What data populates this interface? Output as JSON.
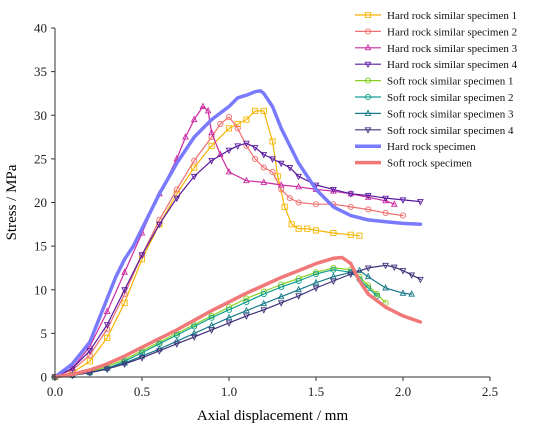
{
  "chart_data": {
    "type": "line",
    "title": "",
    "xlabel": "Axial displacement / mm",
    "ylabel": "Stress / MPa",
    "xlim": [
      0,
      2.5
    ],
    "ylim": [
      0,
      40
    ],
    "xticks": [
      "0.0",
      "0.5",
      "1.0",
      "1.5",
      "2.0",
      "2.5"
    ],
    "yticks": [
      "0",
      "5",
      "10",
      "15",
      "20",
      "25",
      "30",
      "35",
      "40"
    ],
    "grid": false,
    "legend_position": "top-right",
    "series": [
      {
        "name": "Hard rock similar specimen 1",
        "color": "#f5b400",
        "marker": "square",
        "width": 1.2,
        "x": [
          0.0,
          0.1,
          0.2,
          0.3,
          0.4,
          0.5,
          0.6,
          0.7,
          0.8,
          0.9,
          1.0,
          1.05,
          1.1,
          1.15,
          1.2,
          1.25,
          1.28,
          1.32,
          1.36,
          1.4,
          1.45,
          1.5,
          1.6,
          1.7,
          1.75
        ],
        "y": [
          0.0,
          0.5,
          1.8,
          4.5,
          8.5,
          13.5,
          17.5,
          21.0,
          24.0,
          26.5,
          28.5,
          29.0,
          29.5,
          30.5,
          30.5,
          27.0,
          23.0,
          19.5,
          17.5,
          17.0,
          17.0,
          16.8,
          16.5,
          16.3,
          16.2
        ]
      },
      {
        "name": "Hard rock similar specimen 2",
        "color": "#f07070",
        "marker": "circle",
        "width": 1.2,
        "x": [
          0.0,
          0.1,
          0.2,
          0.3,
          0.4,
          0.5,
          0.6,
          0.7,
          0.8,
          0.9,
          0.95,
          1.0,
          1.05,
          1.1,
          1.15,
          1.2,
          1.25,
          1.3,
          1.35,
          1.4,
          1.5,
          1.6,
          1.7,
          1.8,
          1.9,
          2.0
        ],
        "y": [
          0.0,
          0.8,
          2.5,
          5.5,
          9.5,
          14.0,
          18.0,
          21.5,
          24.8,
          27.5,
          29.0,
          29.8,
          28.5,
          26.5,
          25.0,
          24.0,
          23.5,
          21.5,
          20.5,
          20.0,
          19.8,
          19.8,
          19.5,
          19.2,
          18.8,
          18.5
        ]
      },
      {
        "name": "Hard rock similar specimen 3",
        "color": "#cc2aa0",
        "marker": "triangle",
        "width": 1.2,
        "x": [
          0.0,
          0.1,
          0.2,
          0.3,
          0.4,
          0.5,
          0.6,
          0.7,
          0.75,
          0.8,
          0.85,
          0.88,
          0.9,
          0.95,
          1.0,
          1.1,
          1.2,
          1.3,
          1.4,
          1.5,
          1.6,
          1.7,
          1.8,
          1.9,
          1.95
        ],
        "y": [
          0.0,
          1.0,
          3.5,
          7.5,
          12.0,
          16.5,
          21.0,
          25.0,
          27.5,
          29.5,
          31.0,
          30.5,
          28.0,
          25.5,
          23.5,
          22.5,
          22.3,
          22.0,
          21.8,
          21.5,
          21.3,
          21.0,
          20.6,
          20.2,
          19.8
        ]
      },
      {
        "name": "Hard rock similar specimen 4",
        "color": "#5a1aa0",
        "marker": "triangle-down",
        "width": 1.2,
        "x": [
          0.0,
          0.1,
          0.2,
          0.3,
          0.4,
          0.5,
          0.6,
          0.7,
          0.8,
          0.9,
          1.0,
          1.05,
          1.1,
          1.15,
          1.2,
          1.25,
          1.3,
          1.35,
          1.4,
          1.5,
          1.6,
          1.7,
          1.8,
          1.9,
          2.0,
          2.1
        ],
        "y": [
          0.0,
          1.0,
          3.0,
          6.0,
          10.0,
          14.0,
          17.5,
          20.5,
          23.0,
          24.8,
          26.0,
          26.5,
          26.8,
          26.3,
          25.5,
          25.0,
          24.5,
          24.0,
          23.0,
          22.0,
          21.5,
          21.0,
          20.8,
          20.5,
          20.3,
          20.1
        ]
      },
      {
        "name": "Soft rock similar specimen 1",
        "color": "#88d020",
        "marker": "circle",
        "width": 1.2,
        "x": [
          0.0,
          0.1,
          0.2,
          0.3,
          0.4,
          0.5,
          0.6,
          0.7,
          0.8,
          0.9,
          1.0,
          1.1,
          1.2,
          1.3,
          1.4,
          1.5,
          1.6,
          1.7,
          1.75,
          1.8,
          1.85,
          1.9
        ],
        "y": [
          0.0,
          0.2,
          0.6,
          1.2,
          2.0,
          3.0,
          4.0,
          5.0,
          6.0,
          7.0,
          8.0,
          9.0,
          9.8,
          10.6,
          11.3,
          12.0,
          12.5,
          12.3,
          11.5,
          10.5,
          9.5,
          8.5
        ]
      },
      {
        "name": "Soft rock similar specimen 2",
        "color": "#10a090",
        "marker": "circle",
        "width": 1.2,
        "x": [
          0.0,
          0.1,
          0.2,
          0.3,
          0.4,
          0.5,
          0.6,
          0.7,
          0.8,
          0.9,
          1.0,
          1.1,
          1.2,
          1.3,
          1.4,
          1.5,
          1.6,
          1.7,
          1.75,
          1.8,
          1.85
        ],
        "y": [
          0.0,
          0.2,
          0.5,
          1.0,
          1.8,
          2.8,
          3.8,
          4.8,
          5.8,
          6.8,
          7.7,
          8.6,
          9.5,
          10.3,
          11.0,
          11.8,
          12.3,
          12.0,
          11.2,
          10.2,
          9.3
        ]
      },
      {
        "name": "Soft rock similar specimen 3",
        "color": "#1a7a8a",
        "marker": "triangle",
        "width": 1.2,
        "x": [
          0.0,
          0.1,
          0.2,
          0.3,
          0.4,
          0.5,
          0.6,
          0.7,
          0.8,
          0.9,
          1.0,
          1.1,
          1.2,
          1.3,
          1.4,
          1.5,
          1.6,
          1.7,
          1.75,
          1.8,
          1.9,
          2.0,
          2.05
        ],
        "y": [
          0.0,
          0.2,
          0.5,
          1.0,
          1.6,
          2.4,
          3.2,
          4.1,
          5.0,
          5.9,
          6.8,
          7.6,
          8.4,
          9.2,
          10.0,
          10.8,
          11.5,
          12.0,
          12.2,
          11.5,
          10.2,
          9.6,
          9.5
        ]
      },
      {
        "name": "Soft rock similar specimen 4",
        "color": "#40307a",
        "marker": "triangle-down",
        "width": 1.2,
        "x": [
          0.0,
          0.1,
          0.2,
          0.3,
          0.4,
          0.5,
          0.6,
          0.7,
          0.8,
          0.9,
          1.0,
          1.1,
          1.2,
          1.3,
          1.4,
          1.5,
          1.6,
          1.7,
          1.8,
          1.9,
          1.95,
          2.0,
          2.05,
          2.1
        ],
        "y": [
          0.0,
          0.2,
          0.5,
          0.9,
          1.5,
          2.2,
          3.0,
          3.8,
          4.6,
          5.4,
          6.2,
          7.0,
          7.7,
          8.5,
          9.3,
          10.2,
          11.0,
          11.8,
          12.5,
          12.8,
          12.6,
          12.2,
          11.7,
          11.2
        ]
      },
      {
        "name": "Hard rock specimen",
        "color": "#7a7aff",
        "marker": "none",
        "width": 3.5,
        "x": [
          0.0,
          0.1,
          0.2,
          0.25,
          0.3,
          0.35,
          0.4,
          0.45,
          0.5,
          0.6,
          0.7,
          0.8,
          0.9,
          1.0,
          1.05,
          1.1,
          1.15,
          1.18,
          1.2,
          1.25,
          1.3,
          1.35,
          1.4,
          1.5,
          1.6,
          1.7,
          1.8,
          1.9,
          2.0,
          2.1
        ],
        "y": [
          0.0,
          1.5,
          4.0,
          6.5,
          9.0,
          11.5,
          13.5,
          15.0,
          17.0,
          21.0,
          24.5,
          27.5,
          29.5,
          31.0,
          32.0,
          32.3,
          32.7,
          32.8,
          32.5,
          31.0,
          28.5,
          26.5,
          24.5,
          21.5,
          19.5,
          18.5,
          18.0,
          17.8,
          17.6,
          17.5
        ]
      },
      {
        "name": "Soft rock specimen",
        "color": "#f07878",
        "marker": "none",
        "width": 3.5,
        "x": [
          0.0,
          0.1,
          0.2,
          0.3,
          0.4,
          0.5,
          0.6,
          0.7,
          0.8,
          0.9,
          1.0,
          1.1,
          1.2,
          1.3,
          1.4,
          1.5,
          1.6,
          1.65,
          1.7,
          1.75,
          1.8,
          1.9,
          2.0,
          2.1
        ],
        "y": [
          0.0,
          0.3,
          0.8,
          1.5,
          2.4,
          3.4,
          4.4,
          5.4,
          6.5,
          7.6,
          8.6,
          9.6,
          10.5,
          11.4,
          12.2,
          13.0,
          13.6,
          13.7,
          13.0,
          11.0,
          9.5,
          8.0,
          7.0,
          6.3
        ]
      }
    ]
  }
}
